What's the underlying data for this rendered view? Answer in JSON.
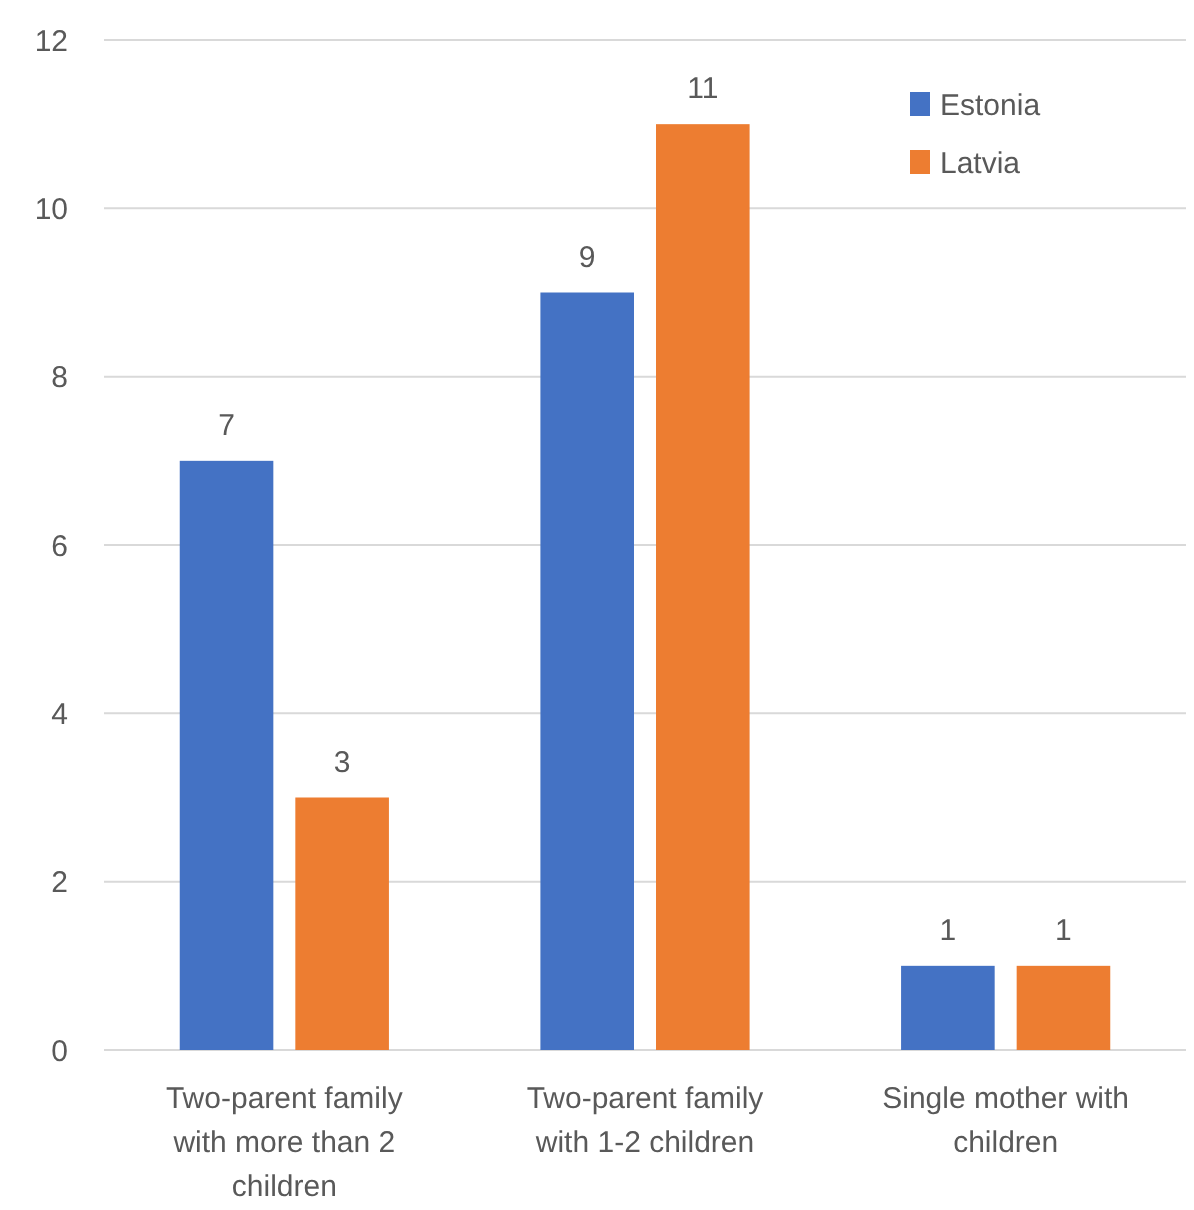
{
  "chart_data": {
    "type": "bar",
    "categories": [
      "Two-parent family with more than 2 children",
      "Two-parent family with 1-2 children",
      "Single mother with children"
    ],
    "series": [
      {
        "name": "Estonia",
        "color": "#4472c4",
        "values": [
          7,
          9,
          1
        ]
      },
      {
        "name": "Latvia",
        "color": "#ed7d31",
        "values": [
          3,
          11,
          1
        ]
      }
    ],
    "ylim": [
      0,
      12
    ],
    "yticks": [
      0,
      2,
      4,
      6,
      8,
      10,
      12
    ],
    "grid": "y",
    "legend": "top right",
    "data_labels": true
  }
}
